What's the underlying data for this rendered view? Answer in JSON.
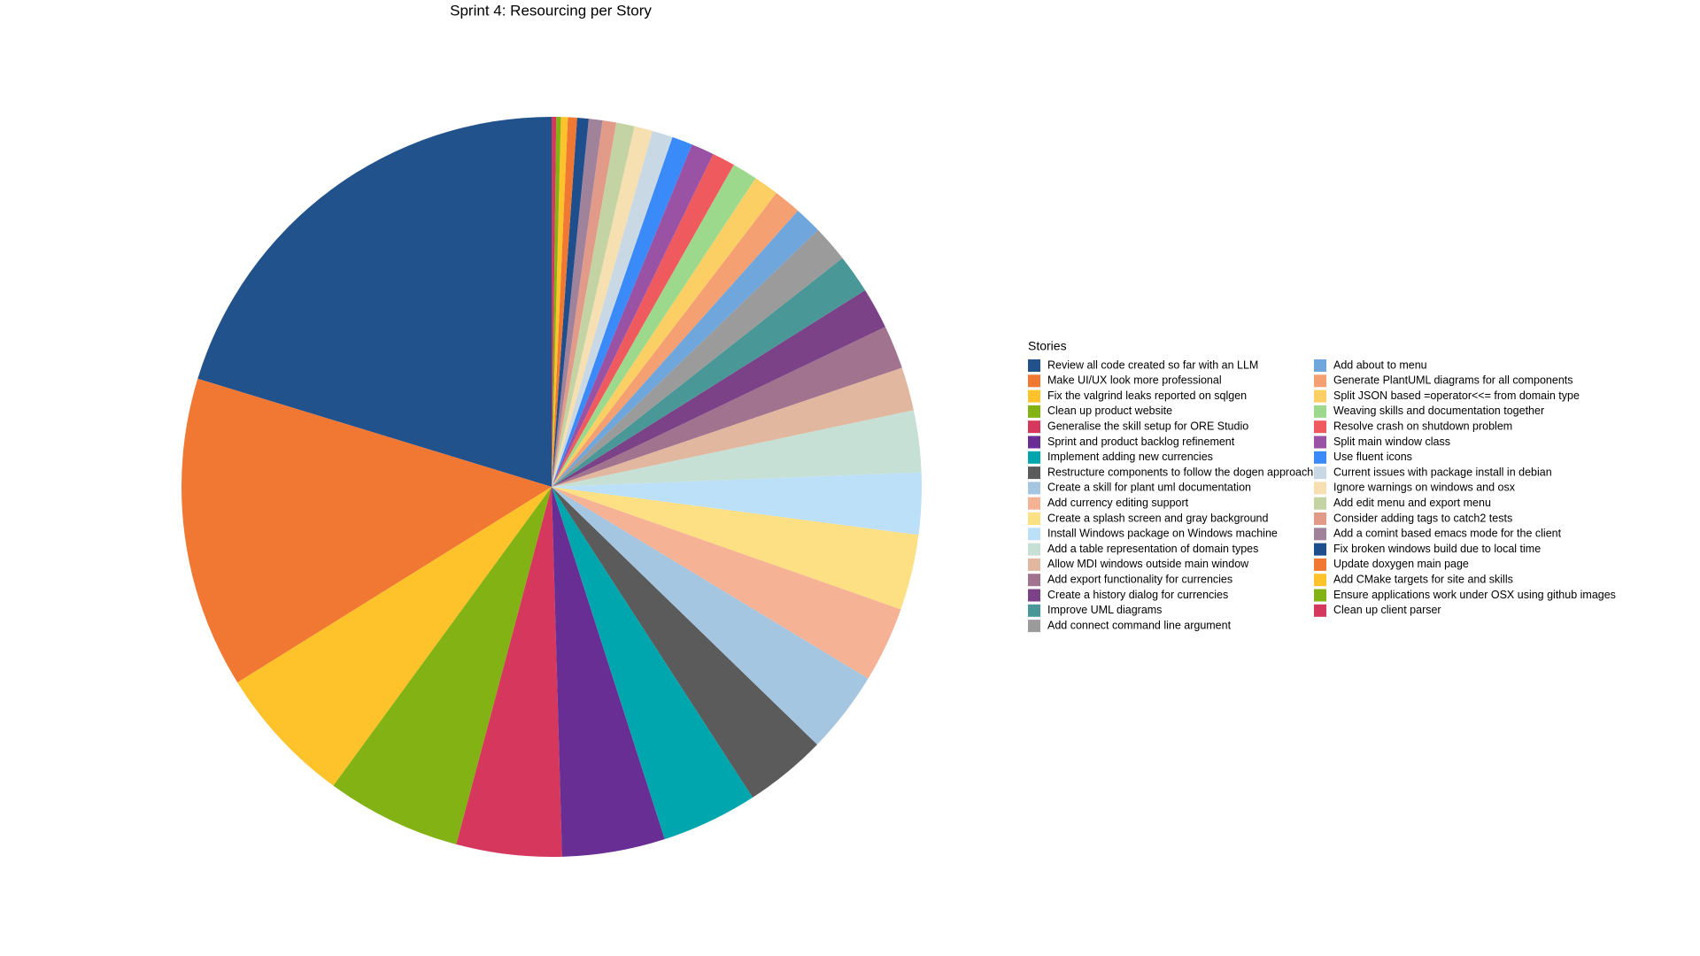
{
  "chart_data": {
    "type": "pie",
    "title": "Sprint 4: Resourcing per Story",
    "legend_title": "Stories",
    "categories": [
      "Review all code created so far with an LLM",
      "Make UI/UX look more professional",
      "Fix the valgrind leaks reported on sqlgen",
      "Clean up product website",
      "Generalise the skill setup for ORE Studio",
      "Sprint and product backlog refinement",
      "Implement adding new currencies",
      "Restructure components to follow the dogen approach",
      "Create a skill for plant uml documentation",
      "Add currency editing support",
      "Create a splash screen and gray background",
      "Install Windows package on Windows machine",
      "Add a table representation of domain types",
      "Allow MDI windows outside main window",
      "Add export functionality for currencies",
      "Create a history dialog for currencies",
      "Improve UML diagrams",
      "Add connect command line argument",
      "Add about to menu",
      "Generate PlantUML diagrams for all components",
      "Split JSON based =operator<<= from domain type",
      "Weaving skills and documentation together",
      "Resolve crash on shutdown problem",
      "Split main window class",
      "Use fluent icons",
      "Current issues with package install in debian",
      "Ignore warnings on windows and osx",
      "Add edit menu and export menu",
      "Consider adding tags to catch2 tests",
      "Add a comint based emacs mode for the client",
      "Fix broken windows build due to local time",
      "Update doxygen main page",
      "Add CMake targets for site and skills",
      "Ensure applications work under OSX using github images",
      "Clean up client parser"
    ],
    "values": [
      20.3,
      13.6,
      6.1,
      5.9,
      4.6,
      4.5,
      4.2,
      3.6,
      3.6,
      3.3,
      3.3,
      2.7,
      2.7,
      1.9,
      1.9,
      1.8,
      1.7,
      1.6,
      1.2,
      1.2,
      1.1,
      1.1,
      1.0,
      1.0,
      0.9,
      0.9,
      0.8,
      0.8,
      0.6,
      0.6,
      0.5,
      0.4,
      0.3,
      0.2,
      0.2
    ],
    "colors": [
      "#22528c",
      "#f07833",
      "#fec22a",
      "#83b215",
      "#d6375c",
      "#692e93",
      "#00a6ad",
      "#5b5b5b",
      "#a5c6e0",
      "#f6b295",
      "#fde083",
      "#bde0f9",
      "#c6e0d6",
      "#e1b89f",
      "#a1738e",
      "#7b4287",
      "#4a9797",
      "#9b9b9b",
      "#6fa6db",
      "#f4a072",
      "#fbcf64",
      "#9dd98d",
      "#ef5a5e",
      "#9a52a5",
      "#3a8af9",
      "#c8d8e5",
      "#f6dfb1",
      "#c3d3a3",
      "#e29a89",
      "#a1829b",
      "#1f4e8c",
      "#f07833",
      "#fec22a",
      "#83b215",
      "#d6375c"
    ]
  }
}
